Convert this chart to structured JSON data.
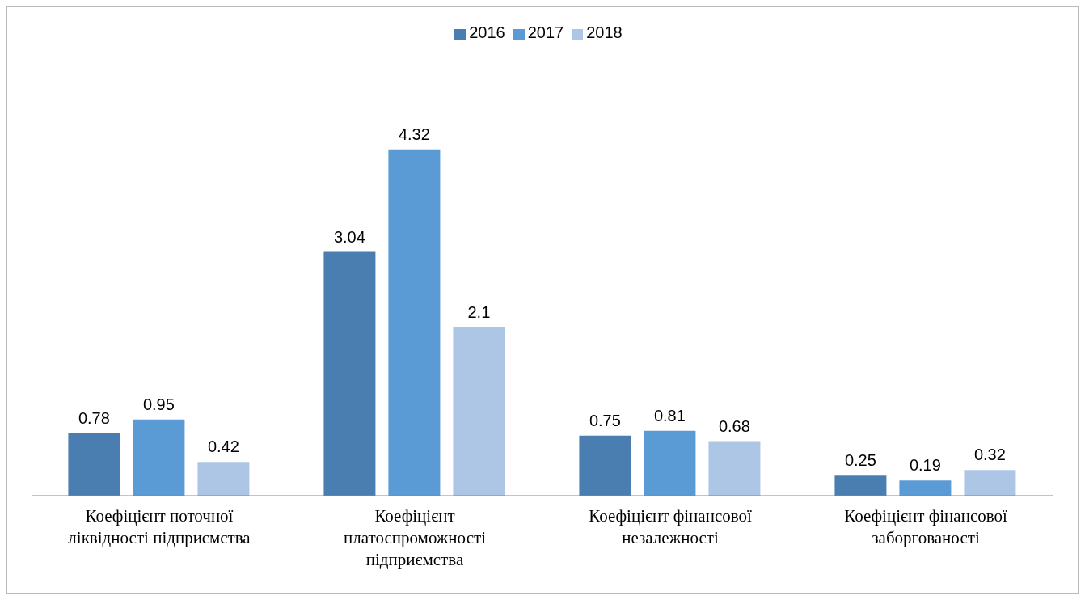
{
  "chart_data": {
    "type": "bar",
    "categories": [
      "Коефіцієнт поточної ліквідності підприємства",
      "Коефіцієнт платоспроможності підприємства",
      "Коефіцієнт фінансової незалежності",
      "Коефіцієнт фінансової заборгованості"
    ],
    "series": [
      {
        "name": "2016",
        "color": "#4a7eb0",
        "values": [
          0.78,
          3.04,
          0.75,
          0.25
        ]
      },
      {
        "name": "2017",
        "color": "#5b9bd5",
        "values": [
          0.95,
          4.32,
          0.81,
          0.19
        ]
      },
      {
        "name": "2018",
        "color": "#adc6e6",
        "values": [
          0.42,
          2.1,
          0.68,
          0.32
        ]
      }
    ],
    "data_labels": true,
    "legend": "top",
    "grid": false
  }
}
